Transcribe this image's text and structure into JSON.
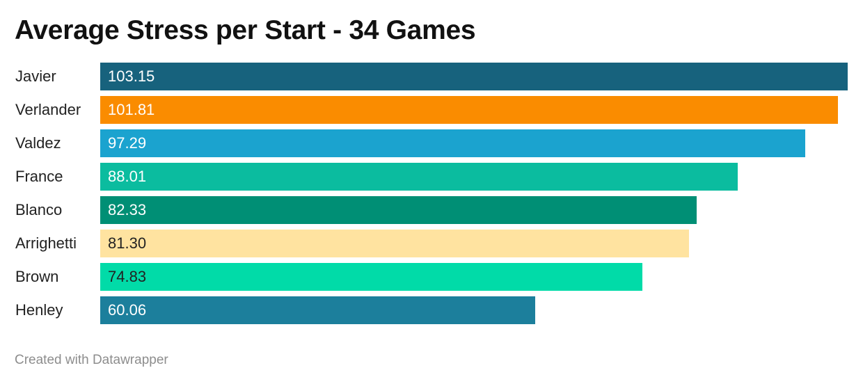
{
  "chart_data": {
    "type": "bar",
    "orientation": "horizontal",
    "title": "Average Stress per Start - 34 Games",
    "categories": [
      "Javier",
      "Verlander",
      "Valdez",
      "France",
      "Blanco",
      "Arrighetti",
      "Brown",
      "Henley"
    ],
    "values": [
      103.15,
      101.81,
      97.29,
      88.01,
      82.33,
      81.3,
      74.83,
      60.06
    ],
    "value_labels": [
      "103.15",
      "101.81",
      "97.29",
      "88.01",
      "82.33",
      "81.30",
      "74.83",
      "60.06"
    ],
    "colors": [
      "#17627d",
      "#fa8c00",
      "#1ba3cf",
      "#0bbc9f",
      "#008f75",
      "#ffe3a0",
      "#01dba8",
      "#1c7f9c"
    ],
    "label_colors": [
      "#ffffff",
      "#ffffff",
      "#ffffff",
      "#ffffff",
      "#ffffff",
      "#222222",
      "#222222",
      "#ffffff"
    ],
    "xlim": [
      0,
      103.15
    ],
    "grid": false,
    "xlabel": "",
    "ylabel": ""
  },
  "footer": {
    "credit": "Created with Datawrapper"
  }
}
